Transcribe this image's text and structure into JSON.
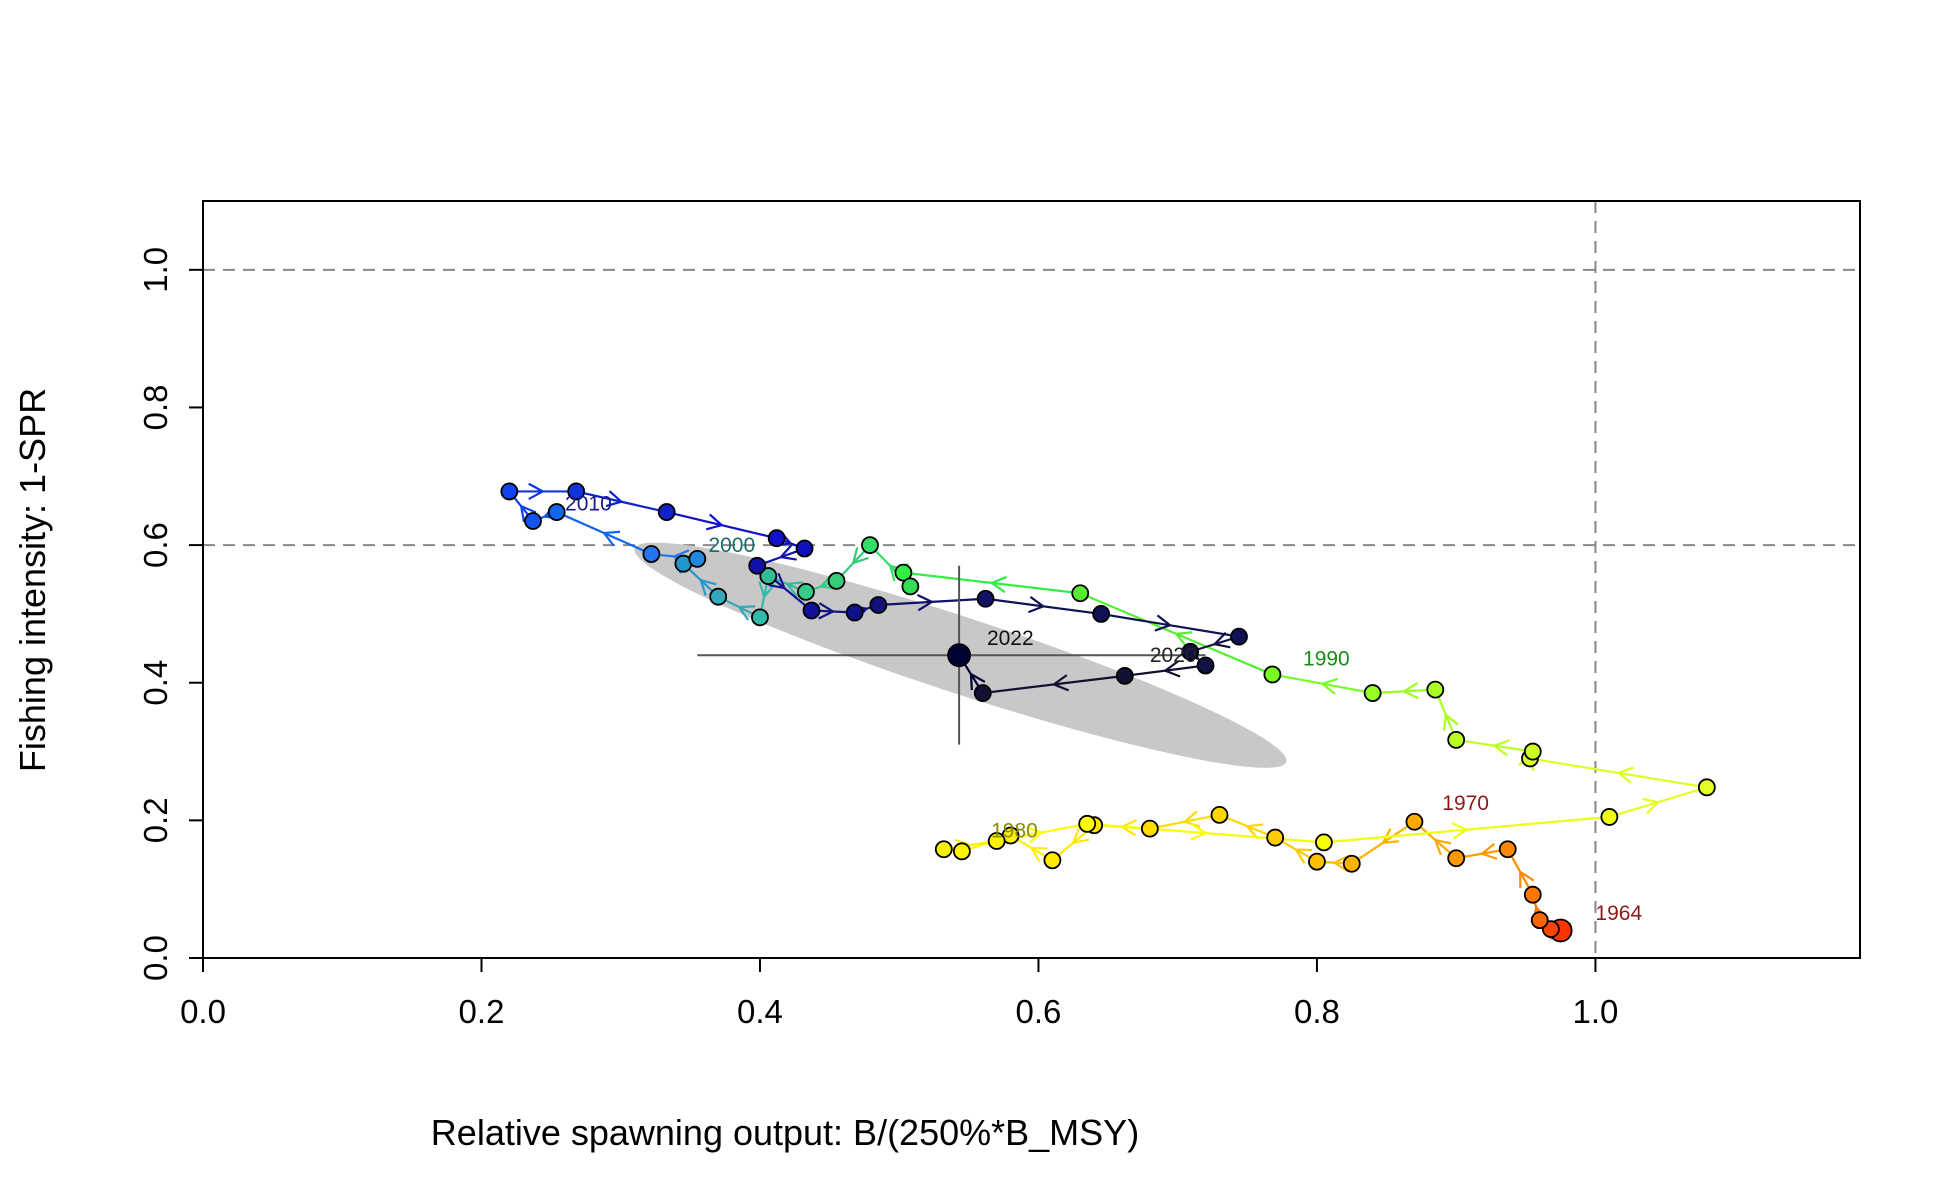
{
  "chart_data": {
    "type": "scatter",
    "title": "",
    "xlabel": "Relative spawning output: B/(250%*B_MSY)",
    "ylabel": "Fishing intensity: 1-SPR",
    "xlim": [
      0,
      1.19
    ],
    "ylim": [
      0,
      1.1
    ],
    "x_ticks": [
      "0.0",
      "0.2",
      "0.4",
      "0.6",
      "0.8",
      "1.0"
    ],
    "y_ticks": [
      "0.0",
      "0.2",
      "0.4",
      "0.6",
      "0.8",
      "1.0"
    ],
    "reference_lines": {
      "horizontal": [
        1.0,
        0.6
      ],
      "vertical": [
        1.0
      ]
    },
    "grid": false,
    "legend": "none",
    "trajectory": {
      "start_year": 1964,
      "x": [
        0.975,
        0.968,
        0.96,
        0.955,
        0.937,
        0.9,
        0.87,
        0.825,
        0.8,
        0.77,
        0.73,
        0.68,
        0.64,
        0.61,
        0.58,
        0.545,
        0.532,
        0.57,
        0.635,
        0.805,
        1.01,
        1.08,
        0.953,
        0.955,
        0.9,
        0.885,
        0.84,
        0.768,
        0.63,
        0.503,
        0.508,
        0.479,
        0.455,
        0.433,
        0.406,
        0.4,
        0.37,
        0.345,
        0.355,
        0.322,
        0.254,
        0.237,
        0.22,
        0.268,
        0.333,
        0.412,
        0.432,
        0.398,
        0.437,
        0.468,
        0.485,
        0.562,
        0.645,
        0.744,
        0.709,
        0.72,
        0.662,
        0.56,
        0.543
      ],
      "y": [
        0.04,
        0.042,
        0.055,
        0.092,
        0.158,
        0.145,
        0.198,
        0.137,
        0.14,
        0.175,
        0.208,
        0.188,
        0.193,
        0.142,
        0.178,
        0.155,
        0.158,
        0.17,
        0.195,
        0.168,
        0.205,
        0.248,
        0.29,
        0.3,
        0.317,
        0.39,
        0.385,
        0.412,
        0.53,
        0.56,
        0.54,
        0.6,
        0.548,
        0.532,
        0.555,
        0.495,
        0.525,
        0.573,
        0.58,
        0.587,
        0.648,
        0.635,
        0.678,
        0.678,
        0.648,
        0.61,
        0.595,
        0.57,
        0.505,
        0.502,
        0.513,
        0.522,
        0.5,
        0.467,
        0.445,
        0.425,
        0.41,
        0.385,
        0.44
      ],
      "colors": [
        "#ff3300",
        "#ff4400",
        "#ff6600",
        "#ff7700",
        "#ff8800",
        "#ff9900",
        "#ffaa00",
        "#ffb300",
        "#ffbf00",
        "#ffcc00",
        "#ffd700",
        "#ffdd00",
        "#ffe500",
        "#ffea00",
        "#fff000",
        "#fff300",
        "#f7f000",
        "#fbf000",
        "#ffff00",
        "#f5ff00",
        "#eeff11",
        "#e6ff22",
        "#ddff22",
        "#ccff22",
        "#bbff22",
        "#aaff22",
        "#99ff22",
        "#77ff22",
        "#55ee33",
        "#33ee44",
        "#33dd55",
        "#33dd66",
        "#33cc77",
        "#33cc88",
        "#33bb99",
        "#33bbaa",
        "#33aabb",
        "#2299cc",
        "#2288dd",
        "#2277ee",
        "#1166ee",
        "#1155ee",
        "#1144ee",
        "#1133dd",
        "#1122cc",
        "#1111cc",
        "#1111bb",
        "#1111aa",
        "#111199",
        "#111188",
        "#111177",
        "#111166",
        "#111155",
        "#111155",
        "#111144",
        "#111144",
        "#111133",
        "#111133",
        "#000033"
      ]
    },
    "year_labels": [
      {
        "text": "1964",
        "x": 1.0,
        "y": 0.055,
        "color": "#8b1a1a"
      },
      {
        "text": "1970",
        "x": 0.89,
        "y": 0.215,
        "color": "#8b1a1a"
      },
      {
        "text": "1980",
        "x": 0.566,
        "y": 0.175,
        "color": "#8b8b00"
      },
      {
        "text": "1990",
        "x": 0.79,
        "y": 0.425,
        "color": "#1a8b1a"
      },
      {
        "text": "2000",
        "x": 0.363,
        "y": 0.59,
        "color": "#1a6b6b"
      },
      {
        "text": "2010",
        "x": 0.26,
        "y": 0.65,
        "color": "#1a1a8b"
      },
      {
        "text": "2020",
        "x": 0.68,
        "y": 0.43,
        "color": "#222222"
      },
      {
        "text": "2022",
        "x": 0.563,
        "y": 0.455,
        "color": "#111111"
      }
    ],
    "final_point": {
      "year": 2022,
      "x": 0.543,
      "y": 0.44,
      "x_interval": [
        0.355,
        0.72
      ],
      "y_interval": [
        0.31,
        0.57
      ],
      "ellipse_color": "#c8c8c8"
    }
  }
}
